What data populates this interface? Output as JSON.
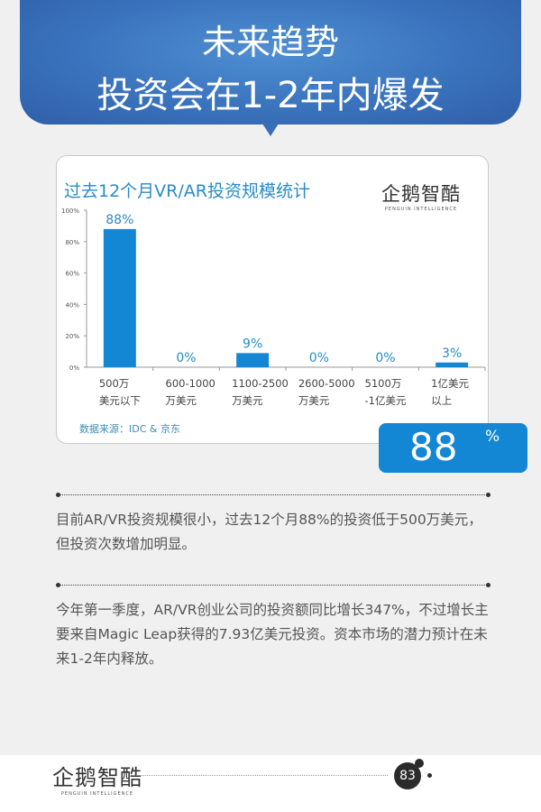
{
  "header": {
    "line1": "未来趋势",
    "line2": "投资会在1-2年内爆发"
  },
  "logo": {
    "cn": "企鹅智酷",
    "en": "PENGUIN INTELLIGENCE"
  },
  "chart_data": {
    "type": "bar",
    "title": "过去12个月VR/AR投资规模统计",
    "categories": [
      [
        "500万",
        "美元以下"
      ],
      [
        "600-1000",
        "万美元"
      ],
      [
        "1100-2500",
        "万美元"
      ],
      [
        "2600-5000",
        "万美元"
      ],
      [
        "5100万",
        "-1亿美元"
      ],
      [
        "1亿美元",
        "以上"
      ]
    ],
    "values": [
      88,
      0,
      9,
      0,
      0,
      3
    ],
    "data_labels": [
      "88%",
      "0%",
      "9%",
      "0%",
      "0%",
      "3%"
    ],
    "yticks": [
      "0%",
      "20%",
      "40%",
      "60%",
      "80%",
      "100%"
    ],
    "ylim": [
      0,
      100
    ],
    "grid": false,
    "bar_color": "#1487d4",
    "label_color": "#2a8bc9",
    "source": "数据来源：IDC & 京东"
  },
  "highlight": {
    "value": "88",
    "unit": "%"
  },
  "paragraphs": [
    "目前AR/VR投资规模很小，过去12个月88%的投资低于500万美元，但投资次数增加明显。",
    "今年第一季度，AR/VR创业公司的投资额同比增长347%，不过增长主要来自Magic Leap获得的7.93亿美元投资。资本市场的潜力预计在未来1-2年内释放。"
  ],
  "footer": {
    "page": "83"
  }
}
